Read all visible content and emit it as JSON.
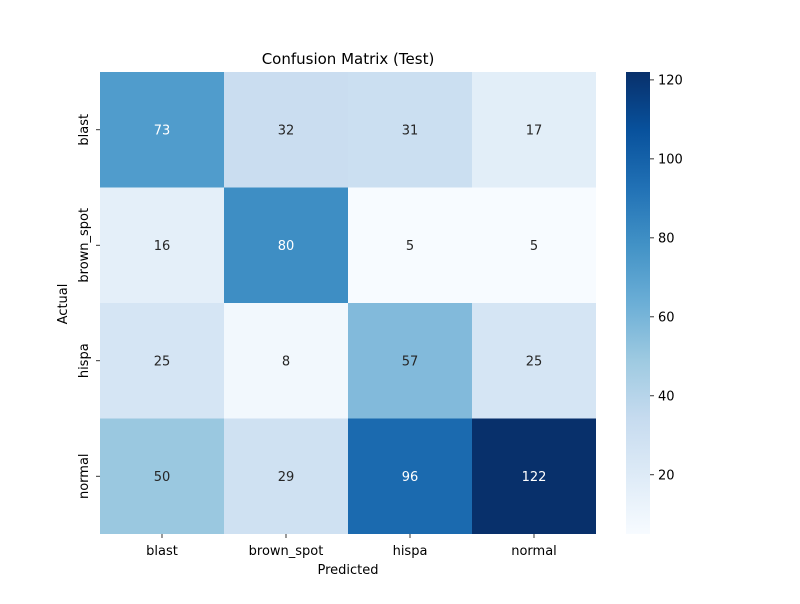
{
  "chart_data": {
    "type": "heatmap",
    "title": "Confusion Matrix (Test)",
    "xlabel": "Predicted",
    "ylabel": "Actual",
    "x_categories": [
      "blast",
      "brown_spot",
      "hispa",
      "normal"
    ],
    "y_categories": [
      "blast",
      "brown_spot",
      "hispa",
      "normal"
    ],
    "values": [
      [
        73,
        32,
        31,
        17
      ],
      [
        16,
        80,
        5,
        5
      ],
      [
        25,
        8,
        57,
        25
      ],
      [
        50,
        29,
        96,
        122
      ]
    ],
    "colormap": "Blues",
    "color_range": [
      5,
      122
    ],
    "colorbar_ticks": [
      20,
      40,
      60,
      80,
      100,
      120
    ],
    "annotations": true,
    "grid": false
  }
}
